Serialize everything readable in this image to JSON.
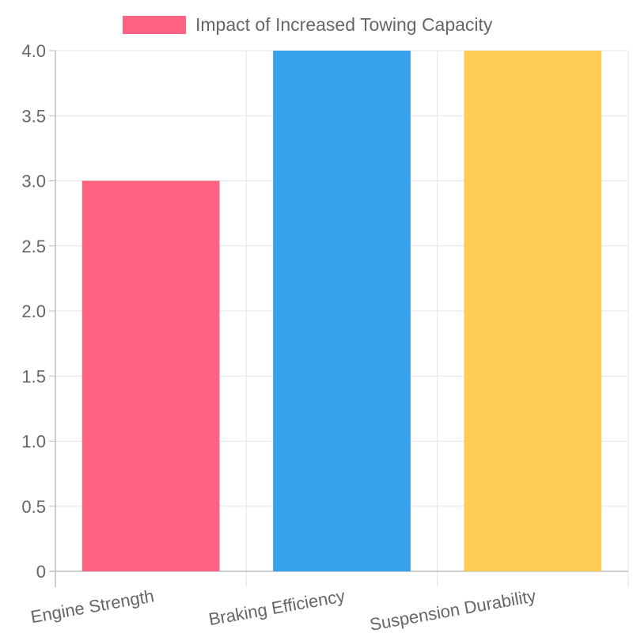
{
  "chart_data": {
    "type": "bar",
    "categories": [
      "Engine Strength",
      "Braking Efficiency",
      "Suspension Durability"
    ],
    "series": [
      {
        "name": "Impact of Increased Towing Capacity",
        "values": [
          3,
          4,
          4
        ]
      }
    ],
    "bar_colors": [
      "#ff6384",
      "#36a2eb",
      "#ffcd56"
    ],
    "ylim": [
      0,
      4
    ],
    "yticks": [
      0,
      0.5,
      1.0,
      1.5,
      2.0,
      2.5,
      3.0,
      3.5,
      4.0
    ],
    "ytick_labels": [
      "0",
      "0.5",
      "1.0",
      "1.5",
      "2.0",
      "2.5",
      "3.0",
      "3.5",
      "4.0"
    ],
    "grid": true,
    "legend_position": "top-center"
  }
}
